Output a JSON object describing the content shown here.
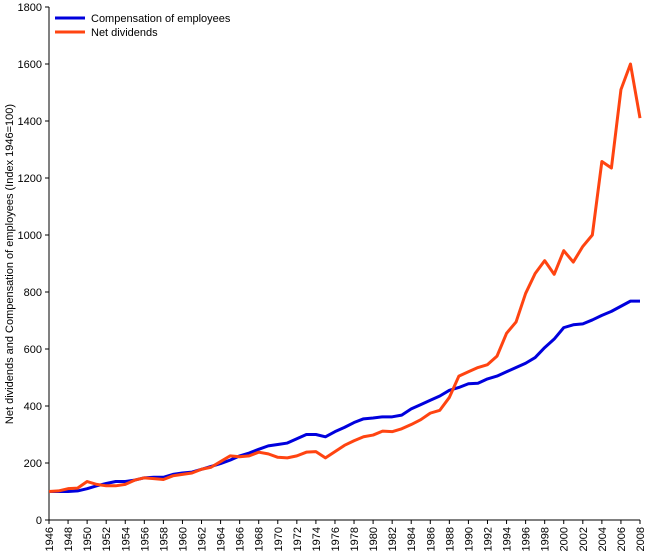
{
  "chart_data": {
    "type": "line",
    "y_label": "Net dividends and Compensation of employees (Index 1946=100)",
    "x": [
      1946,
      1947,
      1948,
      1949,
      1950,
      1951,
      1952,
      1953,
      1954,
      1955,
      1956,
      1957,
      1958,
      1959,
      1960,
      1961,
      1962,
      1963,
      1964,
      1965,
      1966,
      1967,
      1968,
      1969,
      1970,
      1971,
      1972,
      1973,
      1974,
      1975,
      1976,
      1977,
      1978,
      1979,
      1980,
      1981,
      1982,
      1983,
      1984,
      1985,
      1986,
      1987,
      1988,
      1989,
      1990,
      1991,
      1992,
      1993,
      1994,
      1995,
      1996,
      1997,
      1998,
      1999,
      2000,
      2001,
      2002,
      2003,
      2004,
      2005,
      2006,
      2007,
      2008
    ],
    "series": [
      {
        "name": "Compensation of employees",
        "color": "#0000dd",
        "values": [
          100,
          100,
          100,
          102,
          110,
          120,
          128,
          135,
          135,
          140,
          148,
          150,
          150,
          160,
          165,
          168,
          178,
          188,
          198,
          210,
          225,
          235,
          248,
          260,
          265,
          270,
          285,
          300,
          300,
          292,
          310,
          325,
          342,
          355,
          358,
          362,
          362,
          368,
          390,
          405,
          420,
          435,
          455,
          465,
          478,
          480,
          495,
          505,
          520,
          535,
          550,
          570,
          605,
          635,
          675,
          685,
          688,
          702,
          718,
          732,
          750,
          768,
          768
        ]
      },
      {
        "name": "Net dividends",
        "color": "#ff4411",
        "values": [
          100,
          102,
          110,
          112,
          135,
          125,
          120,
          120,
          125,
          140,
          148,
          145,
          142,
          155,
          160,
          165,
          178,
          185,
          205,
          225,
          222,
          225,
          238,
          232,
          220,
          218,
          225,
          238,
          240,
          218,
          240,
          262,
          278,
          292,
          298,
          312,
          310,
          320,
          335,
          352,
          375,
          385,
          430,
          505,
          520,
          535,
          545,
          575,
          655,
          695,
          795,
          865,
          910,
          862,
          945,
          905,
          960,
          1000,
          1258,
          1235,
          1510,
          1600,
          1410
        ]
      }
    ],
    "xlim": [
      1946,
      2008
    ],
    "xticks": [
      1946,
      1948,
      1950,
      1952,
      1954,
      1956,
      1958,
      1960,
      1962,
      1964,
      1966,
      1968,
      1970,
      1972,
      1974,
      1976,
      1978,
      1980,
      1982,
      1984,
      1986,
      1988,
      1990,
      1992,
      1994,
      1996,
      1998,
      2000,
      2002,
      2004,
      2006,
      2008
    ],
    "ylim": [
      0,
      1800
    ],
    "yticks": [
      0,
      200,
      400,
      600,
      800,
      1000,
      1200,
      1400,
      1600,
      1800
    ],
    "legend": "upper-left",
    "grid": false
  }
}
